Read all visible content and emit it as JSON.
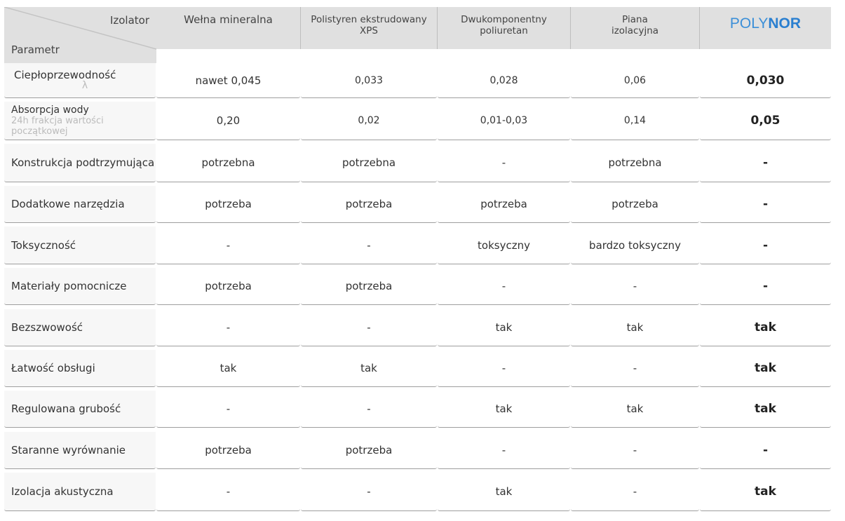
{
  "header": {
    "corner_top": "Izolator",
    "corner_bottom": "Parametr",
    "columns": [
      "Wełna mineralna",
      "Polistyren ekstrudowany XPS",
      "Dwukomponentny poliuretan",
      "Piana izolacyjna"
    ],
    "brand": {
      "part1": "POLY",
      "part2": "NOR",
      "color": "#2a7fd0"
    }
  },
  "rows": [
    {
      "param": "Ciepłoprzewodność",
      "sub": "λ",
      "values": [
        "nawet 0,045",
        "0,033",
        "0,028",
        "0,06",
        "0,030"
      ]
    },
    {
      "param": "Absorpcja wody",
      "sub": "24h frakcja wartości początkowej",
      "values": [
        "0,20",
        "0,02",
        "0,01-0,03",
        "0,14",
        "0,05"
      ]
    },
    {
      "param": "Konstrukcja podtrzymująca",
      "sub": "",
      "values": [
        "potrzebna",
        "potrzebna",
        "-",
        "potrzebna",
        "-"
      ]
    },
    {
      "param": "Dodatkowe narzędzia",
      "sub": "",
      "values": [
        "potrzeba",
        "potrzeba",
        "potrzeba",
        "potrzeba",
        "-"
      ]
    },
    {
      "param": "Toksyczność",
      "sub": "",
      "values": [
        "-",
        "-",
        "toksyczny",
        "bardzo toksyczny",
        "-"
      ]
    },
    {
      "param": "Materiały pomocnicze",
      "sub": "",
      "values": [
        "potrzeba",
        "potrzeba",
        "-",
        "-",
        "-"
      ]
    },
    {
      "param": "Bezszwowość",
      "sub": "",
      "values": [
        "-",
        "-",
        "tak",
        "tak",
        "tak"
      ]
    },
    {
      "param": "Łatwość obsługi",
      "sub": "",
      "values": [
        "tak",
        "tak",
        "-",
        "-",
        "tak"
      ]
    },
    {
      "param": "Regulowana grubość",
      "sub": "",
      "values": [
        "-",
        "-",
        "tak",
        "tak",
        "tak"
      ]
    },
    {
      "param": "Staranne wyrównanie",
      "sub": "",
      "values": [
        "potrzeba",
        "potrzeba",
        "-",
        "-",
        "-"
      ]
    },
    {
      "param": "Izolacja akustyczna",
      "sub": "",
      "values": [
        "-",
        "-",
        "tak",
        "-",
        "tak"
      ]
    }
  ]
}
